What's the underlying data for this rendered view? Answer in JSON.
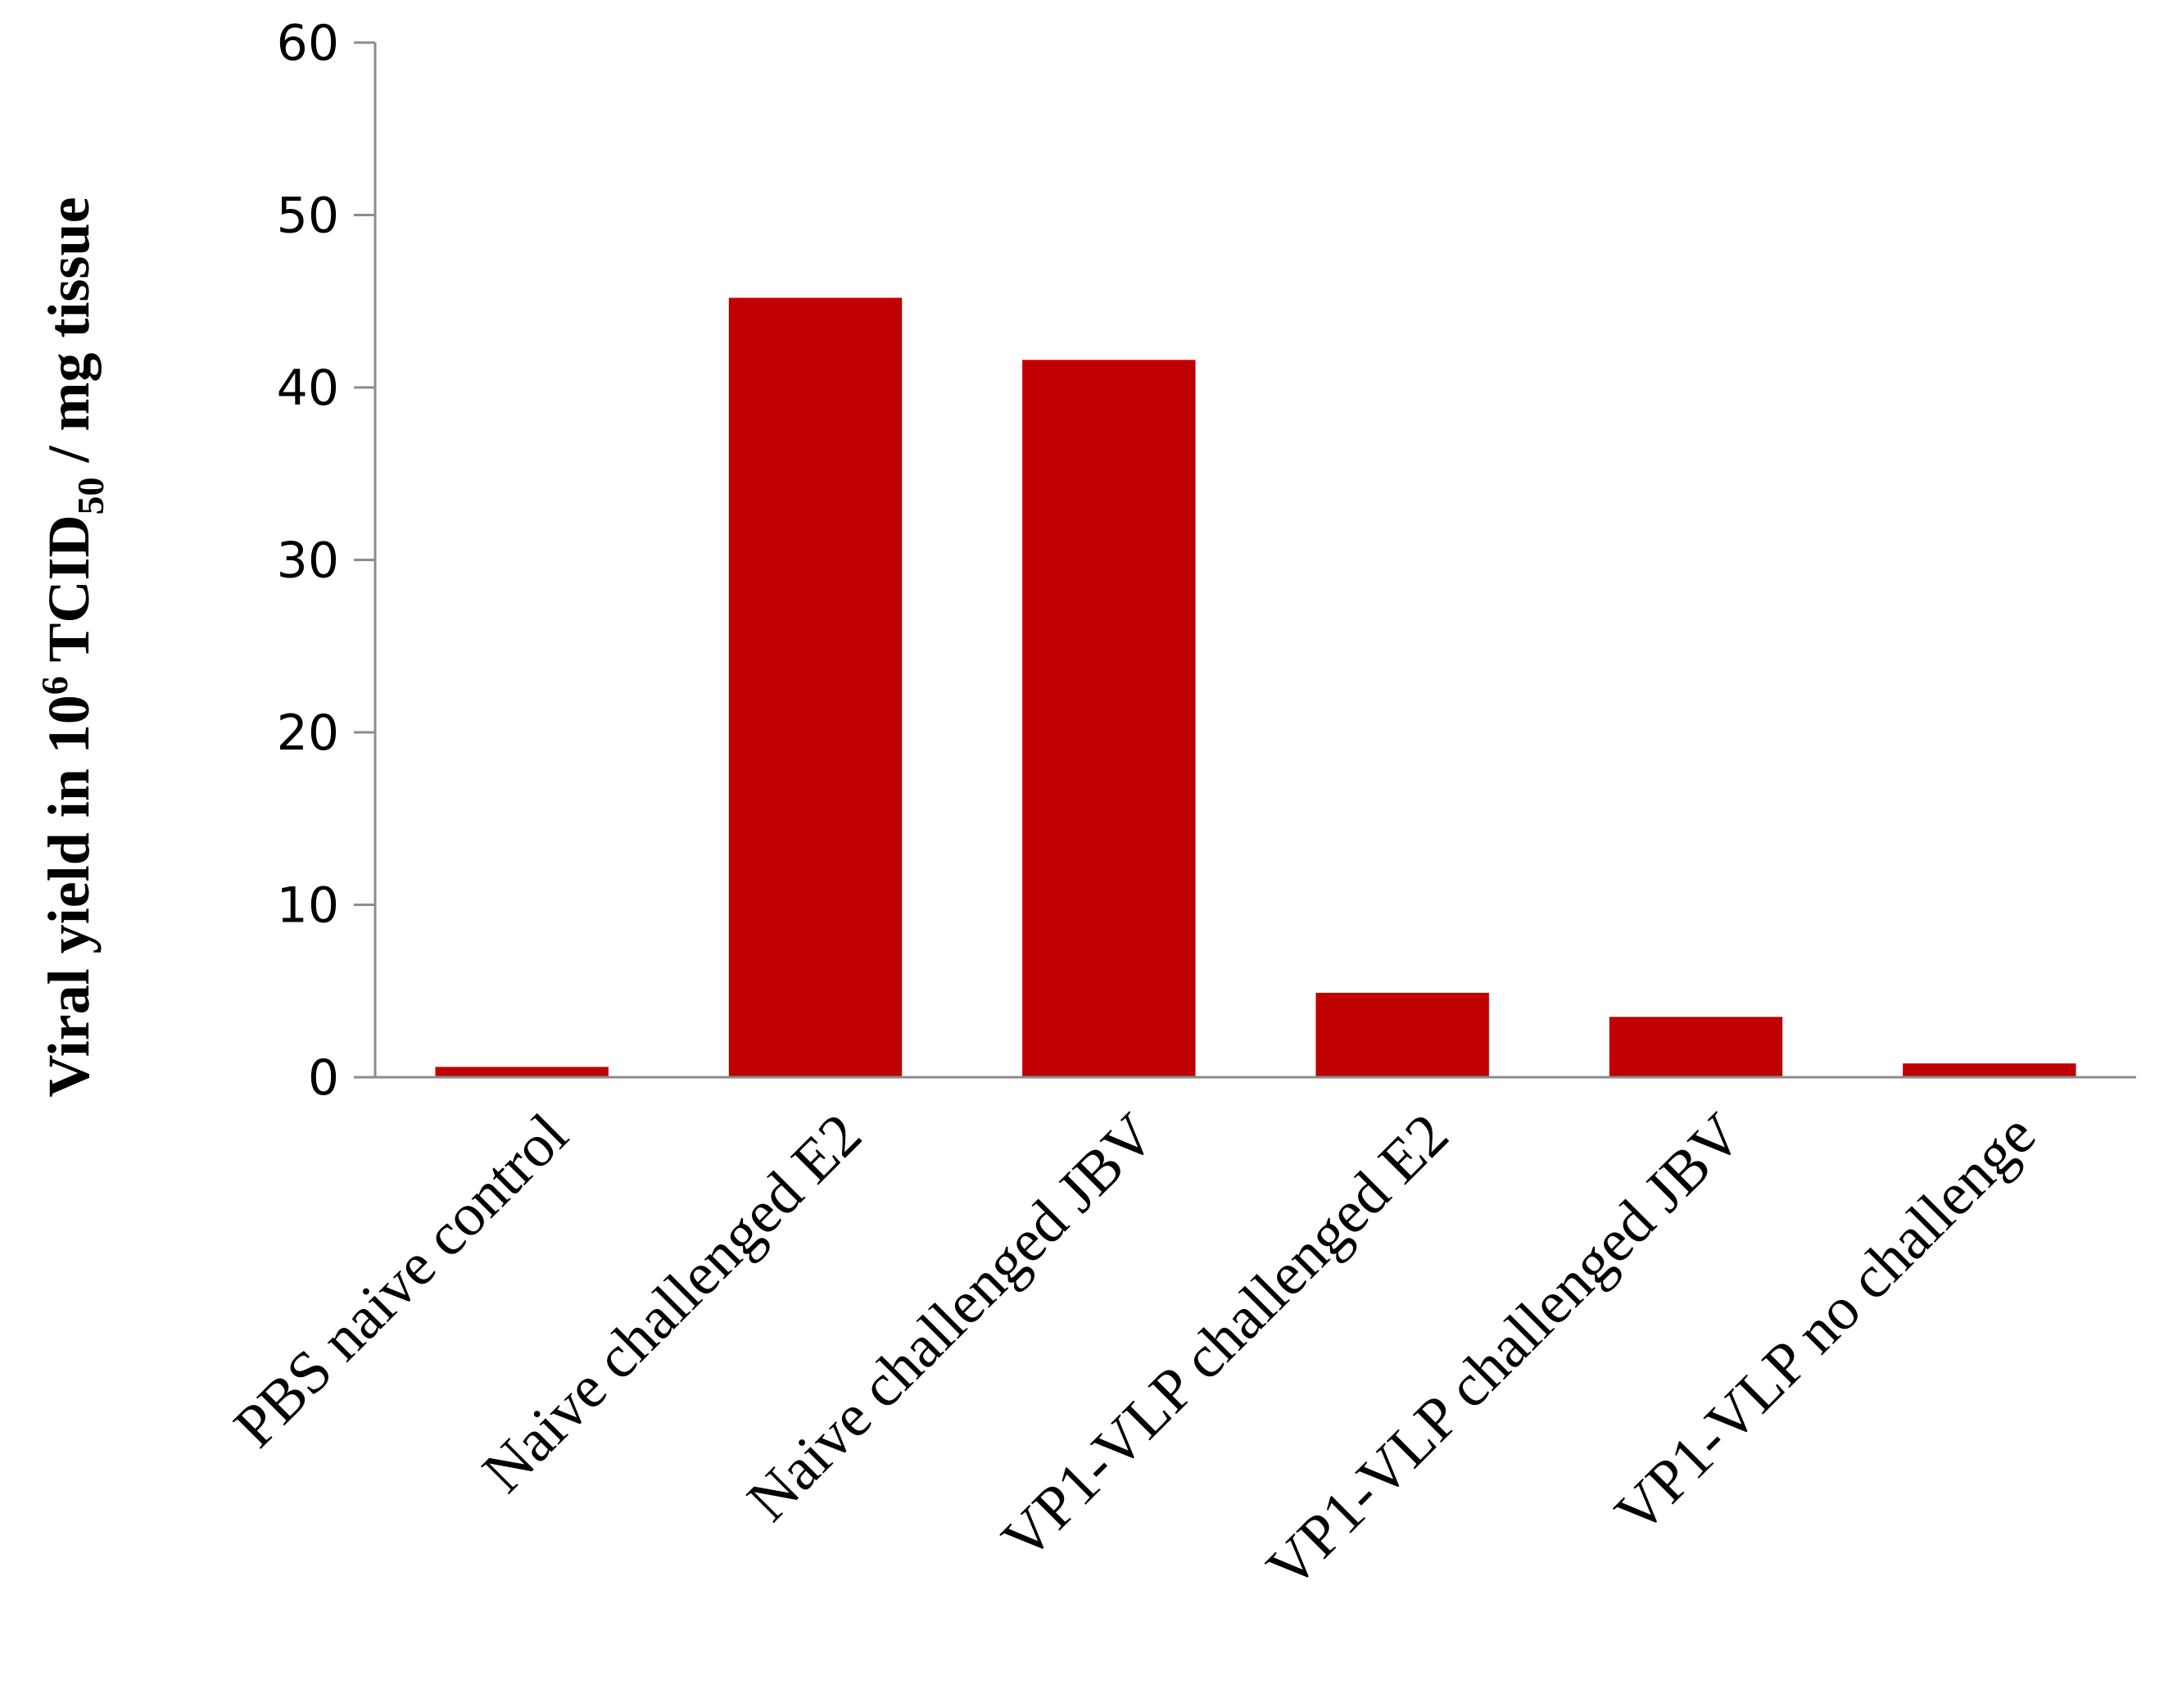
{
  "chart_data": {
    "type": "bar",
    "categories": [
      "PBS naive control",
      "Naive challenged E2",
      "Naive challenged JBV",
      "VP1-VLP challenged E2",
      "VP1-VLP challenged JBV",
      "VP1-VLP no challenge"
    ],
    "values": [
      0.6,
      45.2,
      41.6,
      4.9,
      3.5,
      0.8
    ],
    "title": "",
    "xlabel": "",
    "ylabel_parts": {
      "pre": "Viral yield in 10",
      "sup": "6",
      "mid": " TCID",
      "sub": "50",
      "post": " / mg tissue"
    },
    "ylim": [
      0,
      60
    ],
    "yticks": [
      "0",
      "10",
      "20",
      "30",
      "40",
      "50",
      "60"
    ],
    "grid": false,
    "legend": "none",
    "bar_color": "#c00000"
  }
}
